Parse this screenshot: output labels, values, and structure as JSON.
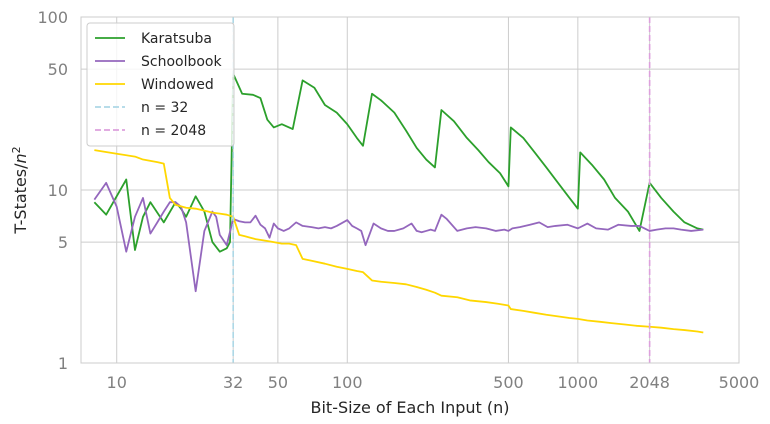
{
  "chart_data": {
    "type": "line",
    "xscale": "log",
    "yscale": "log",
    "xlim": [
      7.0,
      5000
    ],
    "ylim": [
      1,
      100
    ],
    "xticks": [
      10,
      32,
      50,
      100,
      500,
      1000,
      2048,
      5000
    ],
    "xtick_labels": [
      "10",
      "32",
      "50",
      "100",
      "500",
      "1000",
      "2048",
      "5000"
    ],
    "yticks": [
      1,
      5,
      10,
      50,
      100
    ],
    "ytick_labels": [
      "1",
      "5",
      "10",
      "50",
      "100"
    ],
    "xlabel": "Bit-Size of Each Input (n)",
    "ylabel_main": "T-States/",
    "ylabel_var": "n",
    "ylabel_exp": "2",
    "grid": true,
    "legend_position": "top-left",
    "series": [
      {
        "name": "Karatsuba",
        "color": "#2ca02c",
        "x": [
          8,
          9,
          11,
          12,
          13,
          14,
          16,
          18,
          19,
          20,
          22,
          24,
          26,
          28,
          30,
          31,
          32,
          35,
          39,
          42,
          45,
          48,
          52,
          58,
          64,
          72,
          80,
          90,
          100,
          110,
          117,
          128,
          140,
          160,
          180,
          200,
          220,
          240,
          256,
          290,
          330,
          370,
          410,
          460,
          500,
          512,
          580,
          650,
          730,
          820,
          920,
          1000,
          1024,
          1150,
          1300,
          1450,
          1650,
          1850,
          2048,
          2300,
          2600,
          2900,
          3300,
          3500
        ],
        "y": [
          8.5,
          7.2,
          11.5,
          4.5,
          7.0,
          8.5,
          6.5,
          8.5,
          7.8,
          7.0,
          9.2,
          7.5,
          5.0,
          4.4,
          4.6,
          5.0,
          47.0,
          36.0,
          35.5,
          34.0,
          25.5,
          23.0,
          24.0,
          22.5,
          43.0,
          39.0,
          31.0,
          28.0,
          24.0,
          20.0,
          18.0,
          36.0,
          33.0,
          28.0,
          22.0,
          17.5,
          15.0,
          13.5,
          29.0,
          25.0,
          20.0,
          17.0,
          14.5,
          12.5,
          10.5,
          23.0,
          20.0,
          16.5,
          13.5,
          11.0,
          9.0,
          7.8,
          16.5,
          14.0,
          11.5,
          9.0,
          7.5,
          5.8,
          11.0,
          9.0,
          7.5,
          6.5,
          6.0,
          5.9
        ],
        "dashed": false
      },
      {
        "name": "Schoolbook",
        "color": "#9467bd",
        "x": [
          8,
          9,
          10,
          11,
          12,
          13,
          14,
          15,
          16,
          17,
          18,
          19,
          20,
          22,
          24,
          26,
          27,
          28,
          30,
          32,
          34,
          36,
          38,
          40,
          42,
          44,
          46,
          48,
          50,
          53,
          56,
          60,
          64,
          70,
          75,
          80,
          85,
          90,
          100,
          105,
          110,
          115,
          120,
          130,
          140,
          150,
          160,
          175,
          190,
          200,
          210,
          220,
          230,
          240,
          256,
          270,
          300,
          330,
          360,
          400,
          440,
          480,
          500,
          520,
          560,
          620,
          680,
          740,
          800,
          900,
          1000,
          1100,
          1200,
          1350,
          1500,
          1700,
          1850,
          2048,
          2200,
          2400,
          2600,
          2800,
          3100,
          3500
        ],
        "y": [
          8.8,
          11.0,
          8.0,
          4.4,
          7.0,
          9.0,
          5.6,
          6.5,
          7.5,
          8.5,
          8.5,
          8.0,
          6.5,
          2.6,
          5.8,
          7.5,
          7.0,
          5.5,
          4.8,
          6.8,
          6.6,
          6.5,
          6.5,
          7.1,
          6.3,
          6.0,
          5.3,
          6.4,
          6.0,
          5.8,
          6.0,
          6.5,
          6.2,
          6.1,
          6.0,
          6.1,
          6.0,
          6.2,
          6.7,
          6.2,
          6.0,
          5.8,
          4.8,
          6.4,
          6.0,
          5.8,
          5.8,
          6.0,
          6.4,
          5.8,
          5.7,
          5.8,
          5.9,
          5.8,
          7.2,
          6.8,
          5.8,
          6.0,
          6.1,
          6.0,
          5.8,
          5.9,
          5.8,
          6.0,
          6.1,
          6.3,
          6.5,
          6.1,
          6.2,
          6.3,
          6.0,
          6.4,
          6.0,
          5.9,
          6.3,
          6.2,
          6.2,
          5.8,
          5.9,
          6.0,
          6.0,
          5.9,
          5.8,
          5.9
        ],
        "dashed": false
      },
      {
        "name": "Windowed",
        "color": "#ffd700",
        "x": [
          8,
          10,
          12,
          13,
          15,
          16,
          17,
          18,
          20,
          22,
          24,
          26,
          28,
          30,
          32,
          34,
          36,
          38,
          40,
          44,
          48,
          52,
          56,
          60,
          64,
          70,
          80,
          90,
          100,
          110,
          117,
          128,
          140,
          160,
          180,
          200,
          220,
          240,
          256,
          300,
          340,
          400,
          450,
          500,
          512,
          580,
          650,
          730,
          820,
          920,
          1000,
          1100,
          1250,
          1400,
          1600,
          1800,
          2048,
          2300,
          2600,
          2900,
          3300,
          3500
        ],
        "y": [
          17.0,
          16.2,
          15.6,
          15.0,
          14.5,
          14.2,
          9.0,
          8.2,
          7.9,
          7.8,
          7.6,
          7.4,
          7.3,
          7.2,
          7.0,
          5.5,
          5.4,
          5.3,
          5.2,
          5.1,
          5.0,
          4.9,
          4.9,
          4.8,
          4.0,
          3.9,
          3.75,
          3.6,
          3.5,
          3.4,
          3.35,
          3.0,
          2.95,
          2.9,
          2.85,
          2.75,
          2.65,
          2.55,
          2.45,
          2.4,
          2.3,
          2.25,
          2.2,
          2.15,
          2.05,
          2.0,
          1.95,
          1.9,
          1.86,
          1.82,
          1.8,
          1.76,
          1.73,
          1.7,
          1.67,
          1.64,
          1.62,
          1.6,
          1.57,
          1.55,
          1.52,
          1.5
        ],
        "dashed": false
      },
      {
        "name": "n = 32",
        "color": "#add8e6",
        "vline": 32,
        "dashed": true
      },
      {
        "name": "n = 2048",
        "color": "#dda0dd",
        "vline": 2048,
        "dashed": true
      }
    ]
  }
}
